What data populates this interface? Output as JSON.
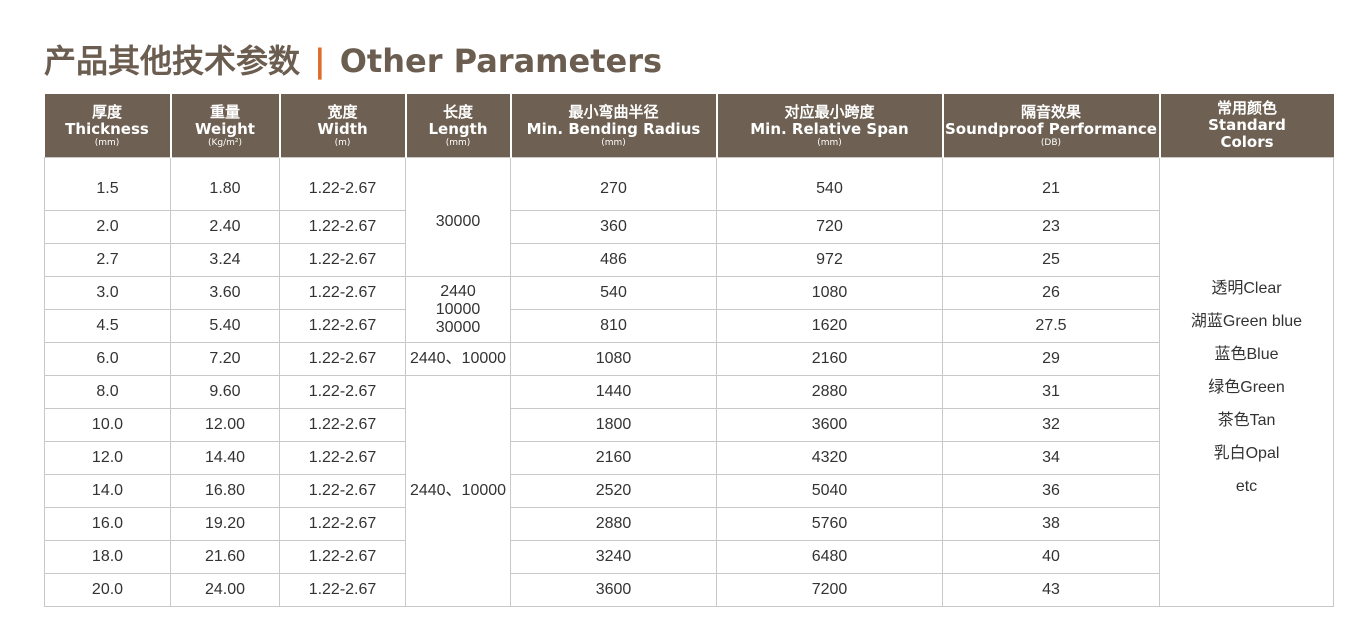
{
  "title": {
    "cn": "产品其他技术参数",
    "separator": "|",
    "en": "Other Parameters"
  },
  "headers": [
    {
      "cn": "厚度",
      "en": "Thickness",
      "unit": "(mm)"
    },
    {
      "cn": "重量",
      "en": "Weight",
      "unit": "(Kg/m²)"
    },
    {
      "cn": "宽度",
      "en": "Width",
      "unit": "(m)"
    },
    {
      "cn": "长度",
      "en": "Length",
      "unit": "(mm)"
    },
    {
      "cn": "最小弯曲半径",
      "en": "Min. Bending Radius",
      "unit": "(mm)"
    },
    {
      "cn": "对应最小跨度",
      "en": "Min. Relative Span",
      "unit": "(mm)"
    },
    {
      "cn": "隔音效果",
      "en": "Soundproof Performance",
      "unit": "(DB)"
    },
    {
      "cn": "常用颜色",
      "en": "Standard",
      "en2": "Colors"
    }
  ],
  "rows": [
    [
      "1.5",
      "1.80",
      "1.22-2.67",
      "270",
      "540",
      "21"
    ],
    [
      "2.0",
      "2.40",
      "1.22-2.67",
      "360",
      "720",
      "23"
    ],
    [
      "2.7",
      "3.24",
      "1.22-2.67",
      "486",
      "972",
      "25"
    ],
    [
      "3.0",
      "3.60",
      "1.22-2.67",
      "540",
      "1080",
      "26"
    ],
    [
      "4.5",
      "5.40",
      "1.22-2.67",
      "810",
      "1620",
      "27.5"
    ],
    [
      "6.0",
      "7.20",
      "1.22-2.67",
      "1080",
      "2160",
      "29"
    ],
    [
      "8.0",
      "9.60",
      "1.22-2.67",
      "1440",
      "2880",
      "31"
    ],
    [
      "10.0",
      "12.00",
      "1.22-2.67",
      "1800",
      "3600",
      "32"
    ],
    [
      "12.0",
      "14.40",
      "1.22-2.67",
      "2160",
      "4320",
      "34"
    ],
    [
      "14.0",
      "16.80",
      "1.22-2.67",
      "2520",
      "5040",
      "36"
    ],
    [
      "16.0",
      "19.20",
      "1.22-2.67",
      "2880",
      "5760",
      "38"
    ],
    [
      "18.0",
      "21.60",
      "1.22-2.67",
      "3240",
      "6480",
      "40"
    ],
    [
      "20.0",
      "24.00",
      "1.22-2.67",
      "3600",
      "7200",
      "43"
    ]
  ],
  "length_groups": [
    {
      "lines": [
        "30000"
      ],
      "span": 3
    },
    {
      "lines": [
        "2440",
        "10000",
        "30000"
      ],
      "span": 2
    },
    {
      "lines": [
        "2440、10000"
      ],
      "span": 1
    },
    {
      "lines": [
        "2440、10000"
      ],
      "span": 7
    }
  ],
  "colors": [
    "透明Clear",
    "湖蓝Green blue",
    "蓝色Blue",
    "绿色Green",
    "茶色Tan",
    "乳白Opal",
    "etc"
  ]
}
